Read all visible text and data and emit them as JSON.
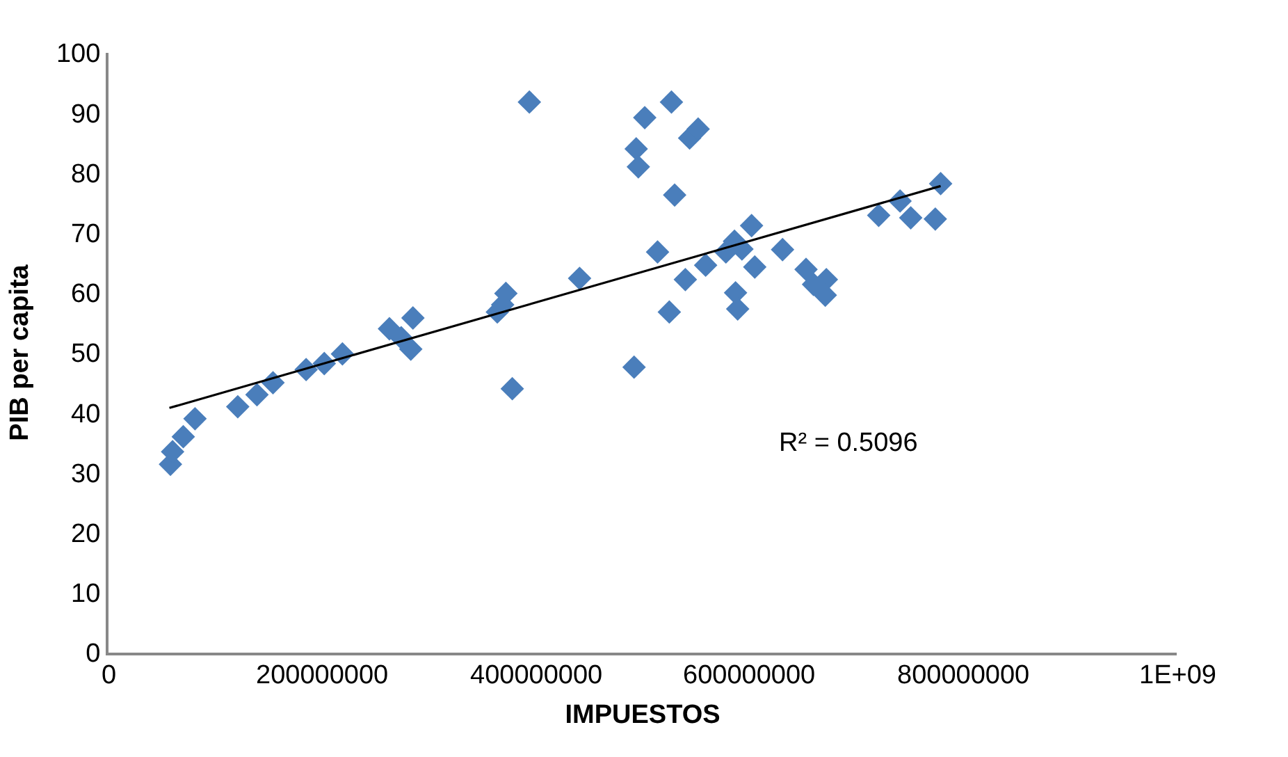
{
  "chart_data": {
    "type": "scatter",
    "xlabel": "IMPUESTOS",
    "ylabel": "PIB per capita",
    "xlim": [
      0,
      1000000000
    ],
    "xticks": [
      0,
      200000000,
      400000000,
      600000000,
      800000000,
      {
        "value": 1000000000,
        "label": "1E+09"
      }
    ],
    "ylim": [
      0,
      100
    ],
    "yticks": [
      0,
      10,
      20,
      30,
      40,
      50,
      60,
      70,
      80,
      90,
      100
    ],
    "marker": "diamond",
    "series": [
      {
        "color": "#4a7ebb",
        "x": [
          58000000,
          60000000,
          70000000,
          81000000,
          121000000,
          139000000,
          154000000,
          185000000,
          202000000,
          219000000,
          263000000,
          274000000,
          285000000,
          283000000,
          364000000,
          369000000,
          372000000,
          378000000,
          394000000,
          441000000,
          492000000,
          494000000,
          496000000,
          502000000,
          527000000,
          530000000,
          514000000,
          525000000,
          540000000,
          544000000,
          552000000,
          559000000,
          578000000,
          586000000,
          587000000,
          589000000,
          593000000,
          602000000,
          605000000,
          631000000,
          653000000,
          660000000,
          672000000,
          671000000,
          721000000,
          741000000,
          751000000,
          774000000,
          779000000
        ],
        "values": [
          31.4,
          33.5,
          36,
          39,
          41,
          43,
          45,
          47.2,
          48.2,
          49.8,
          54,
          52.5,
          55.8,
          50.6,
          56.8,
          58,
          59.9,
          44,
          91.8,
          62.4,
          47.6,
          84,
          81,
          89.2,
          91.8,
          76.3,
          66.8,
          56.8,
          62.2,
          85.8,
          87.3,
          64.6,
          66.8,
          68.6,
          60,
          57.3,
          67.3,
          71.2,
          64.3,
          67.2,
          63.9,
          61.4,
          62.2,
          59.6,
          72.9,
          75.3,
          72.5,
          72.3,
          78.2
        ]
      },
      {
        "type": "line",
        "color": "#000000",
        "marker": "none",
        "line_style": "solid",
        "x": [
          57000000,
          779000000
        ],
        "values": [
          40.8,
          77.8
        ]
      }
    ],
    "annotations": [
      "R² = 0.5096"
    ]
  }
}
